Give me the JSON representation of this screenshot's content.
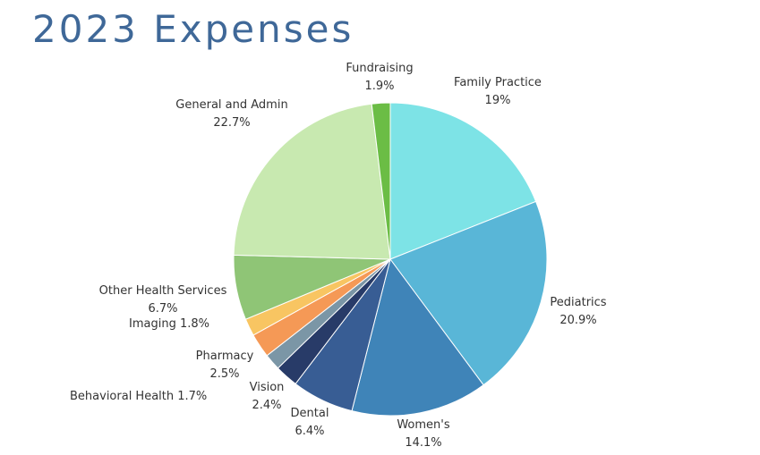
{
  "title": "2023 Expenses",
  "chart_data": {
    "type": "pie",
    "title": "2023 Expenses",
    "start_angle_deg": 0,
    "direction": "clockwise",
    "slices": [
      {
        "name": "Family Practice",
        "value": 19,
        "label": "19%",
        "color": "#7de3e6"
      },
      {
        "name": "Pediatrics",
        "value": 20.9,
        "label": "20.9%",
        "color": "#59b6d7"
      },
      {
        "name": "Women's",
        "value": 14.1,
        "label": "14.1%",
        "color": "#3f84b8"
      },
      {
        "name": "Dental",
        "value": 6.4,
        "label": "6.4%",
        "color": "#385d94"
      },
      {
        "name": "Vision",
        "value": 2.4,
        "label": "2.4%",
        "color": "#283b68"
      },
      {
        "name": "Behavioral Health",
        "value": 1.7,
        "label": "1.7%",
        "color": "#7b96a6"
      },
      {
        "name": "Pharmacy",
        "value": 2.5,
        "label": "2.5%",
        "color": "#f59956"
      },
      {
        "name": "Imaging",
        "value": 1.8,
        "label": "1.8%",
        "color": "#f8c562"
      },
      {
        "name": "Other Health Services",
        "value": 6.7,
        "label": "6.7%",
        "color": "#8fc576"
      },
      {
        "name": "General and Admin",
        "value": 22.7,
        "label": "22.7%",
        "color": "#c8e9b0"
      },
      {
        "name": "Fundraising",
        "value": 1.9,
        "label": "1.9%",
        "color": "#6bbd45"
      }
    ]
  }
}
